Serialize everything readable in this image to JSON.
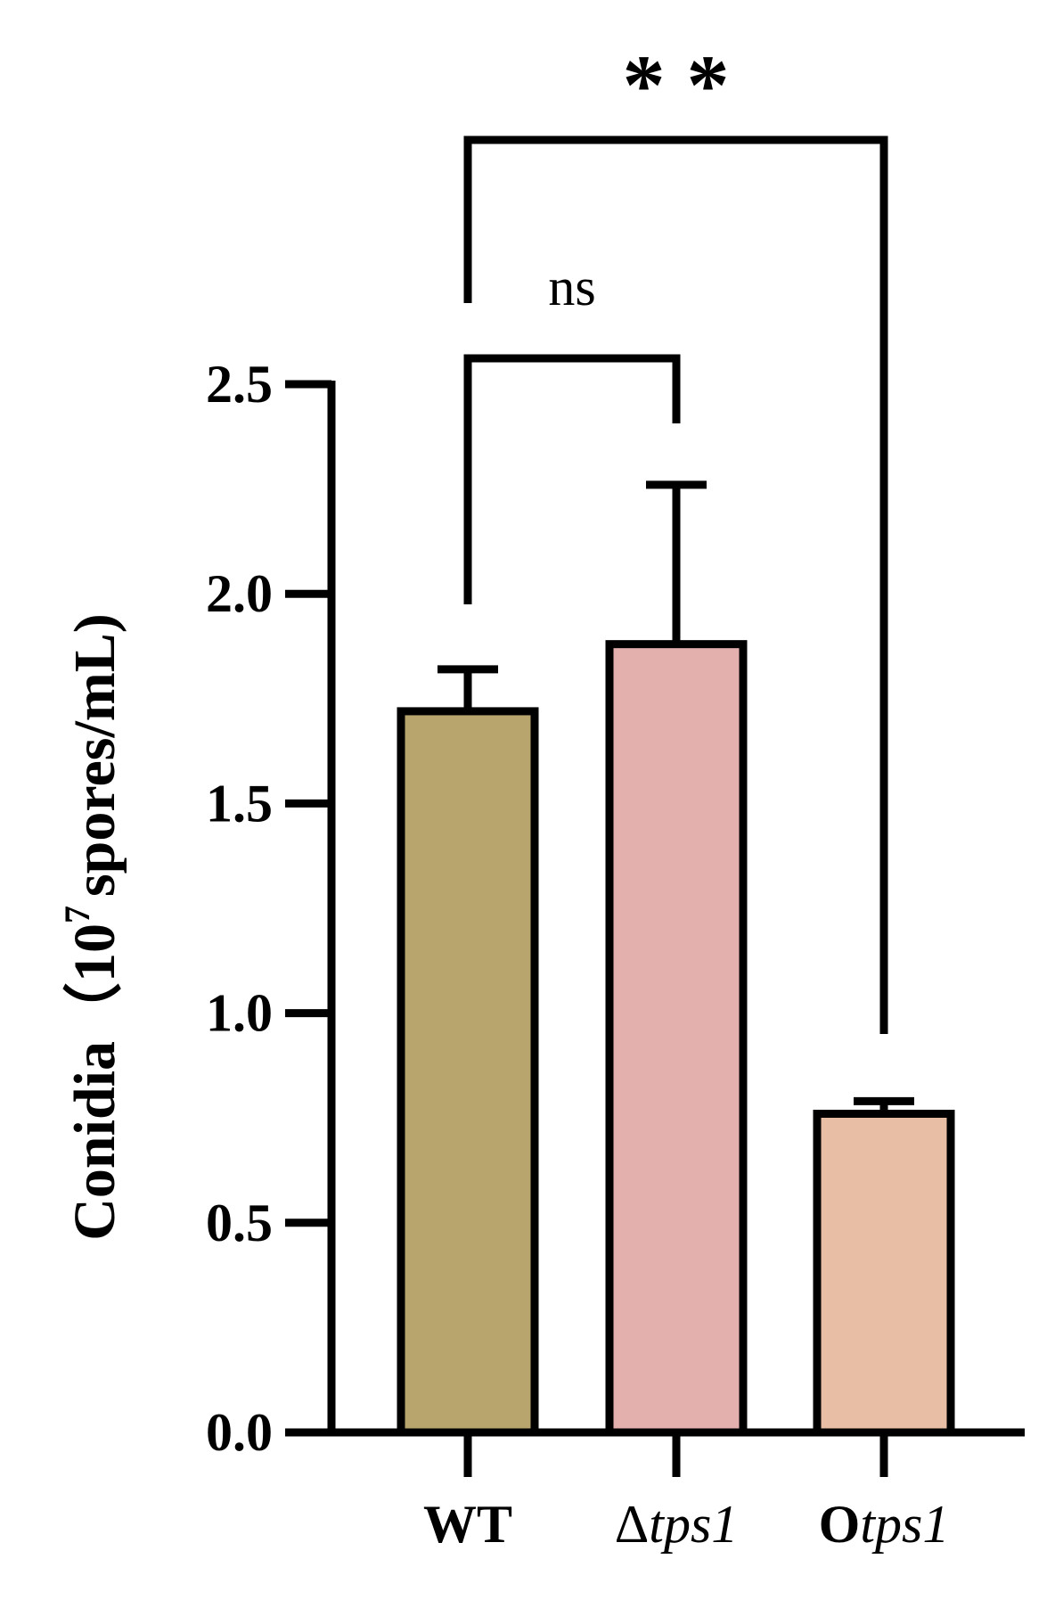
{
  "chart_data": {
    "type": "bar",
    "ylabel_prefix": "Conidia（10",
    "ylabel_superscript": "7",
    "ylabel_suffix": "spores/mL)",
    "ylim": [
      0,
      2.5
    ],
    "yticks": [
      "0.0",
      "0.5",
      "1.0",
      "1.5",
      "2.0",
      "2.5"
    ],
    "categories": [
      {
        "prefix": "WT",
        "italic": ""
      },
      {
        "prefix": "Δ",
        "italic": "tps1"
      },
      {
        "prefix": "O",
        "italic": "tps1"
      }
    ],
    "values": [
      1.72,
      1.88,
      0.76
    ],
    "errors": [
      0.1,
      0.38,
      0.03
    ],
    "colors": [
      "#B8A56E",
      "#E4B0AE",
      "#E8BFA4"
    ],
    "significance": [
      {
        "from": 0,
        "to": 1,
        "label": "ns"
      },
      {
        "from": 0,
        "to": 2,
        "label": "* *"
      }
    ]
  }
}
